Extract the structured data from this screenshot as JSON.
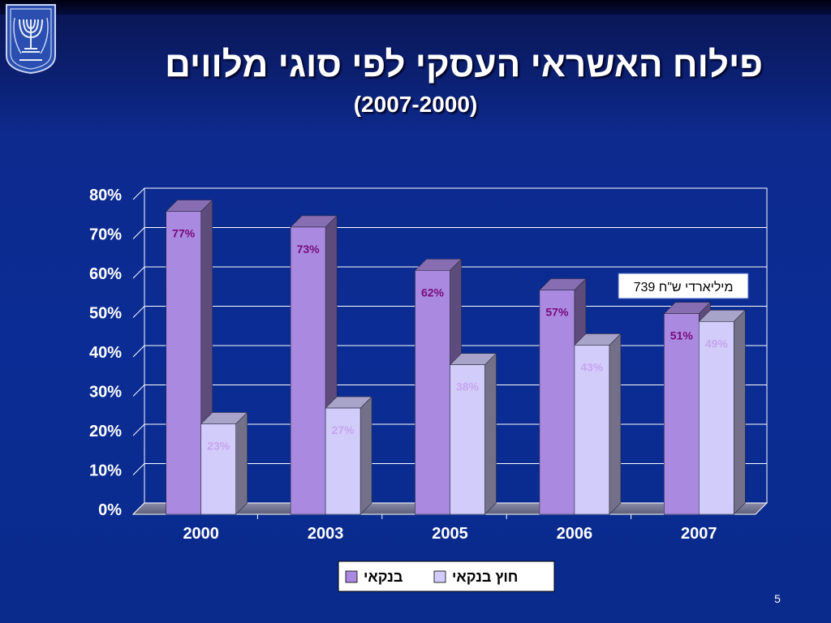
{
  "slide": {
    "title": "פילוח האשראי העסקי לפי סוגי מלווים",
    "subtitle": "(2007-2000)",
    "number": "5"
  },
  "colors": {
    "background": "#0b2c94",
    "bank": "#a98ae0",
    "non_bank": "#d2ccfa",
    "bank_label": "#7a0a7a",
    "non_bank_label": "#c7a5ee"
  },
  "chart_data": {
    "type": "bar",
    "title": "",
    "xlabel": "",
    "ylabel": "",
    "categories": [
      "2000",
      "2003",
      "2005",
      "2006",
      "2007"
    ],
    "series": [
      {
        "name": "בנקאי",
        "values": [
          77,
          73,
          62,
          57,
          51
        ],
        "labels": [
          "77%",
          "73%",
          "62%",
          "57%",
          "51%"
        ]
      },
      {
        "name": "חוץ בנקאי",
        "values": [
          23,
          27,
          38,
          43,
          49
        ],
        "labels": [
          "23%",
          "27%",
          "38%",
          "43%",
          "49%"
        ]
      }
    ],
    "ylim": [
      0,
      80
    ],
    "yticks": [
      "0%",
      "10%",
      "20%",
      "30%",
      "40%",
      "50%",
      "60%",
      "70%",
      "80%"
    ],
    "grid": true,
    "legend": "bottom",
    "annotation": "739 מיליארדי ש\"ח"
  }
}
